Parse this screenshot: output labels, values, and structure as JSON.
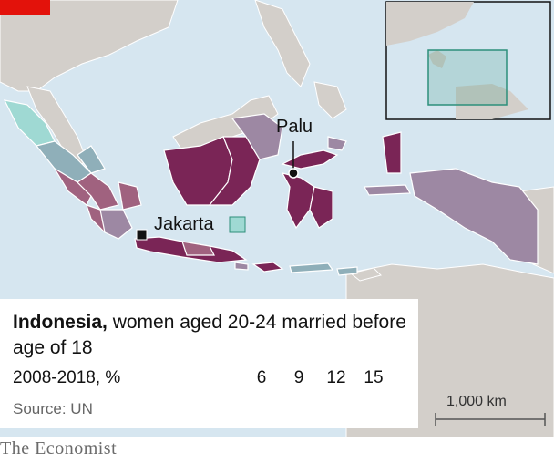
{
  "title_bold": "Indonesia,",
  "title_rest": " women aged 20-24 married before age of 18",
  "subtitle": "2008-2018, %",
  "source": "Source: UN",
  "brand": "The Economist",
  "cities": {
    "palu": "Palu",
    "jakarta": "Jakarta"
  },
  "legend": {
    "ticks": [
      "6",
      "9",
      "12",
      "15"
    ],
    "colors": [
      "#9fd9d3",
      "#8fafb9",
      "#9d88a3",
      "#a0627f",
      "#7a2556"
    ]
  },
  "scale_bar": "1,000 km",
  "colors": {
    "sea": "#d6e6f0",
    "land_other": "#d3cfca",
    "brand_red": "#e3120b",
    "inset_box": "#2d8f7a"
  }
}
